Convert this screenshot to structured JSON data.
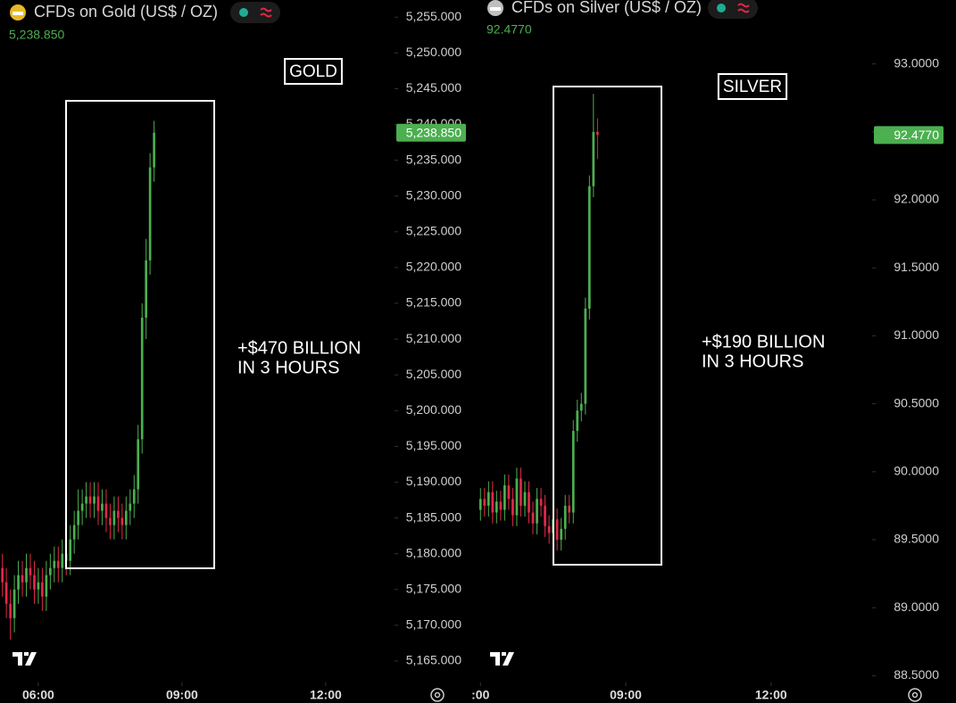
{
  "chart_data": [
    {
      "type": "candlestick",
      "title": "CFDs on Gold (US$ / OZ)",
      "price": {
        "value": 5238.85,
        "label": "5,238.850"
      },
      "label": "GOLD",
      "annotation": [
        "+$470 BILLION",
        "IN 3 HOURS"
      ],
      "up_color": "#4caf50",
      "down_color": "#e0294a",
      "xlim": [
        5.2,
        13.4
      ],
      "xticks": [
        {
          "value": 6,
          "label": "06:00"
        },
        {
          "value": 9,
          "label": "09:00"
        },
        {
          "value": 12,
          "label": "12:00"
        }
      ],
      "ylim": [
        5162,
        5257.4
      ],
      "yticks": [
        {
          "value": 5165,
          "label": "5,165.000"
        },
        {
          "value": 5170,
          "label": "5,170.000"
        },
        {
          "value": 5175,
          "label": "5,175.000"
        },
        {
          "value": 5180,
          "label": "5,180.000"
        },
        {
          "value": 5185,
          "label": "5,185.000"
        },
        {
          "value": 5190,
          "label": "5,190.000"
        },
        {
          "value": 5195,
          "label": "5,195.000"
        },
        {
          "value": 5200,
          "label": "5,200.000"
        },
        {
          "value": 5205,
          "label": "5,205.000"
        },
        {
          "value": 5210,
          "label": "5,210.000"
        },
        {
          "value": 5215,
          "label": "5,215.000"
        },
        {
          "value": 5220,
          "label": "5,220.000"
        },
        {
          "value": 5225,
          "label": "5,225.000"
        },
        {
          "value": 5230,
          "label": "5,230.000"
        },
        {
          "value": 5235,
          "label": "5,235.000"
        },
        {
          "value": 5240,
          "label": "5,240.000"
        },
        {
          "value": 5245,
          "label": "5,245.000"
        },
        {
          "value": 5250,
          "label": "5,250.000"
        },
        {
          "value": 5255,
          "label": "5,255.000"
        }
      ],
      "x": [
        5.25,
        5.333,
        5.417,
        5.5,
        5.583,
        5.667,
        5.75,
        5.833,
        5.917,
        6.0,
        6.083,
        6.167,
        6.25,
        6.333,
        6.417,
        6.5,
        6.583,
        6.667,
        6.75,
        6.833,
        6.917,
        7.0,
        7.083,
        7.167,
        7.25,
        7.333,
        7.417,
        7.5,
        7.583,
        7.667,
        7.75,
        7.833,
        7.917,
        8.0,
        8.083,
        8.167,
        8.25,
        8.333,
        8.417
      ],
      "open": [
        5178,
        5176,
        5173,
        5171,
        5175,
        5177,
        5176,
        5178,
        5177,
        5175,
        5176,
        5174,
        5177,
        5178,
        5179,
        5178,
        5180,
        5179,
        5182,
        5184,
        5186,
        5187,
        5188,
        5187,
        5188,
        5186,
        5187,
        5185,
        5184,
        5186,
        5185,
        5184,
        5186,
        5187,
        5189,
        5196,
        5213,
        5221,
        5234
      ],
      "high": [
        5180,
        5178,
        5175,
        5177,
        5179,
        5179,
        5180,
        5180,
        5179,
        5178,
        5178,
        5179,
        5180,
        5181,
        5181,
        5182,
        5182,
        5184,
        5186,
        5189,
        5189,
        5190,
        5190,
        5190,
        5190,
        5189,
        5189,
        5187,
        5188,
        5188,
        5187,
        5188,
        5189,
        5191,
        5198,
        5215,
        5224,
        5236,
        5240.5
      ],
      "low": [
        5174,
        5171,
        5168,
        5169,
        5173,
        5174,
        5174,
        5175,
        5173,
        5173,
        5172,
        5172,
        5175,
        5176,
        5176,
        5176,
        5177,
        5177,
        5180,
        5182,
        5184,
        5185,
        5185,
        5185,
        5184,
        5184,
        5183,
        5182,
        5182,
        5183,
        5182,
        5182,
        5184,
        5185,
        5187,
        5194,
        5210,
        5219,
        5232
      ],
      "close": [
        5176,
        5173,
        5171,
        5175,
        5177,
        5176,
        5178,
        5177,
        5175,
        5176,
        5174,
        5177,
        5178,
        5179,
        5178,
        5180,
        5179,
        5182,
        5184,
        5186,
        5187,
        5188,
        5187,
        5188,
        5186,
        5187,
        5185,
        5184,
        5186,
        5185,
        5184,
        5186,
        5187,
        5189,
        5196,
        5213,
        5221,
        5234,
        5238.85
      ]
    },
    {
      "type": "candlestick",
      "title": "CFDs on Silver (US$ / OZ)",
      "price": {
        "value": 92.477,
        "label": "92.4770"
      },
      "label": "SILVER",
      "annotation": [
        "+$190 BILLION",
        "IN 3 HOURS"
      ],
      "up_color": "#4caf50",
      "down_color": "#e0294a",
      "xlim": [
        5.94,
        14.05
      ],
      "xticks": [
        {
          "value": 6,
          "label": ":00"
        },
        {
          "value": 9,
          "label": "09:00"
        },
        {
          "value": 12,
          "label": "12:00"
        }
      ],
      "ylim": [
        88.45,
        93.47
      ],
      "yticks": [
        {
          "value": 88.5,
          "label": "88.5000"
        },
        {
          "value": 89,
          "label": "89.0000"
        },
        {
          "value": 89.5,
          "label": "89.5000"
        },
        {
          "value": 90,
          "label": "90.0000"
        },
        {
          "value": 90.5,
          "label": "90.5000"
        },
        {
          "value": 91,
          "label": "91.0000"
        },
        {
          "value": 91.5,
          "label": "91.5000"
        },
        {
          "value": 92,
          "label": "92.0000"
        },
        {
          "value": 92.5,
          "label": "92.5000"
        },
        {
          "value": 93,
          "label": "93.0000"
        }
      ],
      "x": [
        6.0,
        6.083,
        6.167,
        6.25,
        6.333,
        6.417,
        6.5,
        6.583,
        6.667,
        6.75,
        6.833,
        6.917,
        7.0,
        7.083,
        7.167,
        7.25,
        7.333,
        7.417,
        7.5,
        7.583,
        7.667,
        7.75,
        7.833,
        7.917,
        8.0,
        8.083,
        8.167,
        8.25,
        8.333,
        8.417
      ],
      "open": [
        89.72,
        89.8,
        89.75,
        89.85,
        89.7,
        89.78,
        89.72,
        89.9,
        89.8,
        89.68,
        89.95,
        89.75,
        89.85,
        89.7,
        89.62,
        89.8,
        89.75,
        89.6,
        89.55,
        89.65,
        89.5,
        89.58,
        89.75,
        89.7,
        90.3,
        90.45,
        90.5,
        91.2,
        92.1,
        92.5
      ],
      "high": [
        89.88,
        89.88,
        89.93,
        89.93,
        89.86,
        89.86,
        89.98,
        89.98,
        89.88,
        90.03,
        90.03,
        89.93,
        89.93,
        89.78,
        89.88,
        89.88,
        89.83,
        89.68,
        89.73,
        89.73,
        89.66,
        89.83,
        89.83,
        90.38,
        90.53,
        90.58,
        91.28,
        92.18,
        92.78,
        92.6
      ],
      "low": [
        89.64,
        89.67,
        89.67,
        89.62,
        89.62,
        89.64,
        89.64,
        89.72,
        89.6,
        89.6,
        89.67,
        89.67,
        89.62,
        89.54,
        89.54,
        89.67,
        89.52,
        89.47,
        89.47,
        89.42,
        89.42,
        89.5,
        89.62,
        89.62,
        90.22,
        90.37,
        90.42,
        91.12,
        92.02,
        92.3
      ],
      "close": [
        89.8,
        89.75,
        89.85,
        89.7,
        89.78,
        89.72,
        89.9,
        89.8,
        89.68,
        89.95,
        89.75,
        89.85,
        89.7,
        89.62,
        89.8,
        89.75,
        89.6,
        89.55,
        89.65,
        89.5,
        89.58,
        89.75,
        89.7,
        90.3,
        90.45,
        90.5,
        91.2,
        92.1,
        92.5,
        92.477
      ]
    }
  ]
}
